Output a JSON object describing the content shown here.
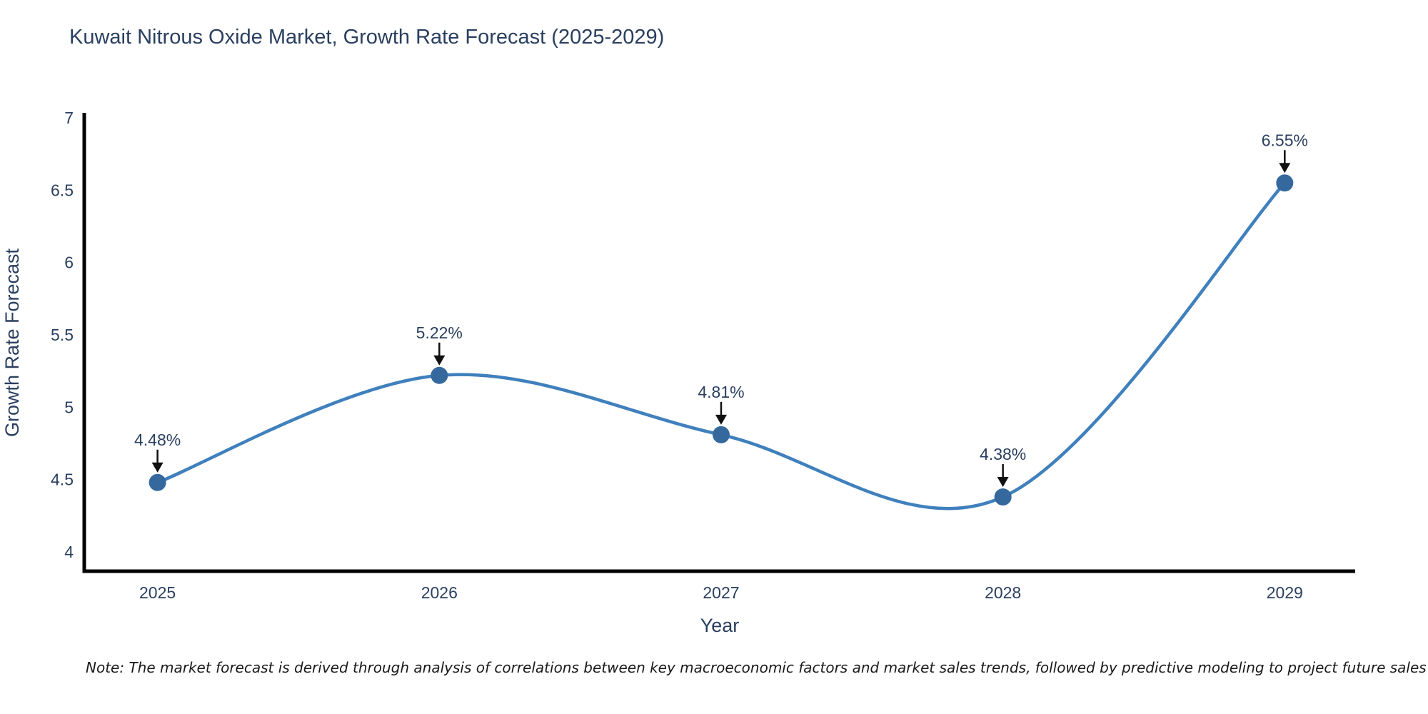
{
  "title": "Kuwait Nitrous Oxide Market, Growth Rate Forecast (2025-2029)",
  "note": "Note: The market forecast is derived through analysis of correlations between key macroeconomic factors and market sales trends, followed by predictive modeling to project future sales",
  "chart_data": {
    "type": "line",
    "title": "Kuwait Nitrous Oxide Market, Growth Rate Forecast (2025-2029)",
    "xlabel": "Year",
    "ylabel": "Growth Rate Forecast",
    "x": [
      2025,
      2026,
      2027,
      2028,
      2029
    ],
    "categories": [
      "2025",
      "2026",
      "2027",
      "2028",
      "2029"
    ],
    "series": [
      {
        "name": "Growth Rate Forecast",
        "values": [
          4.48,
          5.22,
          4.81,
          4.38,
          6.55
        ]
      }
    ],
    "point_labels": [
      "4.48%",
      "5.22%",
      "4.81%",
      "4.38%",
      "6.55%"
    ],
    "yticks": [
      4,
      4.5,
      5,
      5.5,
      6,
      6.5,
      7
    ],
    "ytick_labels": [
      "4",
      "4.5",
      "5",
      "5.5",
      "6",
      "6.5",
      "7"
    ],
    "xlim": [
      2024.74,
      2029.25
    ],
    "ylim": [
      3.867,
      7.025
    ],
    "grid": false,
    "legend": "none",
    "line_shape": "spline",
    "colors": {
      "line": "#3f80bd",
      "marker": "#35699e",
      "axis": "#000000",
      "text": "#2a3f5f",
      "arrow": "#111111"
    }
  }
}
